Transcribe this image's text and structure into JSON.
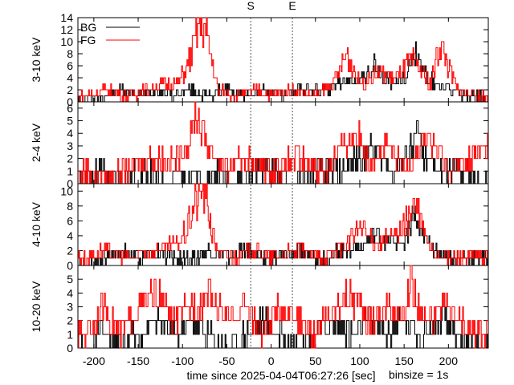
{
  "chart_data": {
    "type": "line",
    "title": "",
    "markers": [
      {
        "label": "S",
        "x": -23
      },
      {
        "label": "E",
        "x": 24
      }
    ],
    "xlabel": "time since 2025-04-04T06:27:26 [sec]",
    "binsize_label": "binsize = 1s",
    "xlim": [
      -218,
      245
    ],
    "xticks": [
      -200,
      -150,
      -100,
      -50,
      0,
      50,
      100,
      150,
      200
    ],
    "legend": {
      "placement": "top-left",
      "entries": [
        {
          "name": "BG",
          "color": "#000000"
        },
        {
          "name": "FG",
          "color": "#ff0000"
        }
      ]
    },
    "panels": [
      {
        "ylabel": "3-10 keV",
        "ylim": [
          0,
          14
        ],
        "yticks": [
          0,
          2,
          4,
          6,
          8,
          10,
          12,
          14
        ],
        "series": [
          {
            "name": "BG",
            "color": "#000000",
            "step": 1,
            "start": -210,
            "values": [
              {
                "x": -210,
                "y": 0
              },
              {
                "x": -190,
                "y": 1
              },
              {
                "x": -170,
                "y": 2
              },
              {
                "x": -150,
                "y": 1
              },
              {
                "x": -130,
                "y": 2
              },
              {
                "x": -110,
                "y": 1
              },
              {
                "x": -90,
                "y": 2
              },
              {
                "x": -70,
                "y": 1
              },
              {
                "x": -50,
                "y": 2
              },
              {
                "x": -30,
                "y": 1
              },
              {
                "x": -10,
                "y": 2
              },
              {
                "x": 10,
                "y": 1
              },
              {
                "x": 30,
                "y": 2
              },
              {
                "x": 60,
                "y": 2
              },
              {
                "x": 80,
                "y": 3
              },
              {
                "x": 105,
                "y": 4
              },
              {
                "x": 115,
                "y": 6
              },
              {
                "x": 125,
                "y": 4
              },
              {
                "x": 140,
                "y": 3
              },
              {
                "x": 155,
                "y": 5
              },
              {
                "x": 163,
                "y": 8
              },
              {
                "x": 170,
                "y": 5
              },
              {
                "x": 185,
                "y": 3
              },
              {
                "x": 200,
                "y": 2
              },
              {
                "x": 225,
                "y": 1
              },
              {
                "x": 240,
                "y": 1
              }
            ]
          },
          {
            "name": "FG",
            "color": "#ff0000",
            "step": 1,
            "start": -210,
            "values": [
              {
                "x": -210,
                "y": 1
              },
              {
                "x": -190,
                "y": 2
              },
              {
                "x": -160,
                "y": 1
              },
              {
                "x": -140,
                "y": 2
              },
              {
                "x": -120,
                "y": 3
              },
              {
                "x": -105,
                "y": 3
              },
              {
                "x": -95,
                "y": 6
              },
              {
                "x": -88,
                "y": 9
              },
              {
                "x": -84,
                "y": 12
              },
              {
                "x": -78,
                "y": 14
              },
              {
                "x": -72,
                "y": 10
              },
              {
                "x": -66,
                "y": 6
              },
              {
                "x": -60,
                "y": 2
              },
              {
                "x": -40,
                "y": 1
              },
              {
                "x": -20,
                "y": 2
              },
              {
                "x": 0,
                "y": 1
              },
              {
                "x": 20,
                "y": 2
              },
              {
                "x": 50,
                "y": 1
              },
              {
                "x": 70,
                "y": 3
              },
              {
                "x": 85,
                "y": 8
              },
              {
                "x": 100,
                "y": 3
              },
              {
                "x": 120,
                "y": 5
              },
              {
                "x": 140,
                "y": 4
              },
              {
                "x": 160,
                "y": 7
              },
              {
                "x": 180,
                "y": 3
              },
              {
                "x": 190,
                "y": 10
              },
              {
                "x": 210,
                "y": 2
              },
              {
                "x": 235,
                "y": 1
              }
            ]
          }
        ]
      },
      {
        "ylabel": "2-4 keV",
        "ylim": [
          0,
          6.5
        ],
        "yticks": [
          0,
          1,
          2,
          3,
          4,
          5,
          6
        ],
        "series": [
          {
            "name": "BG",
            "color": "#000000",
            "step": 1,
            "start": -210,
            "values": [
              {
                "x": -210,
                "y": 0
              },
              {
                "x": -195,
                "y": 1
              },
              {
                "x": -170,
                "y": 0
              },
              {
                "x": -150,
                "y": 1
              },
              {
                "x": -120,
                "y": 0
              },
              {
                "x": -100,
                "y": 1
              },
              {
                "x": -80,
                "y": 0
              },
              {
                "x": -60,
                "y": 1
              },
              {
                "x": -40,
                "y": 0
              },
              {
                "x": -20,
                "y": 1
              },
              {
                "x": 0,
                "y": 1
              },
              {
                "x": 20,
                "y": 0
              },
              {
                "x": 50,
                "y": 1
              },
              {
                "x": 80,
                "y": 1
              },
              {
                "x": 100,
                "y": 2
              },
              {
                "x": 115,
                "y": 3
              },
              {
                "x": 125,
                "y": 2
              },
              {
                "x": 140,
                "y": 1
              },
              {
                "x": 158,
                "y": 3
              },
              {
                "x": 165,
                "y": 4
              },
              {
                "x": 172,
                "y": 2
              },
              {
                "x": 190,
                "y": 1
              },
              {
                "x": 215,
                "y": 1
              },
              {
                "x": 240,
                "y": 0
              }
            ]
          },
          {
            "name": "FG",
            "color": "#ff0000",
            "step": 1,
            "start": -210,
            "values": [
              {
                "x": -210,
                "y": 1
              },
              {
                "x": -190,
                "y": 0
              },
              {
                "x": -170,
                "y": 1
              },
              {
                "x": -140,
                "y": 2
              },
              {
                "x": -110,
                "y": 2
              },
              {
                "x": -95,
                "y": 3
              },
              {
                "x": -90,
                "y": 4
              },
              {
                "x": -86,
                "y": 6
              },
              {
                "x": -82,
                "y": 5
              },
              {
                "x": -76,
                "y": 4
              },
              {
                "x": -70,
                "y": 3
              },
              {
                "x": -62,
                "y": 2
              },
              {
                "x": -50,
                "y": 1
              },
              {
                "x": -30,
                "y": 2
              },
              {
                "x": 0,
                "y": 1
              },
              {
                "x": 30,
                "y": 2
              },
              {
                "x": 60,
                "y": 1
              },
              {
                "x": 80,
                "y": 3
              },
              {
                "x": 95,
                "y": 4
              },
              {
                "x": 110,
                "y": 2
              },
              {
                "x": 130,
                "y": 3
              },
              {
                "x": 150,
                "y": 1
              },
              {
                "x": 175,
                "y": 4
              },
              {
                "x": 200,
                "y": 1
              },
              {
                "x": 225,
                "y": 2
              },
              {
                "x": 243,
                "y": 3
              }
            ]
          }
        ]
      },
      {
        "ylabel": "4-10 keV",
        "ylim": [
          0,
          11
        ],
        "yticks": [
          0,
          2,
          4,
          6,
          8,
          10
        ],
        "series": [
          {
            "name": "BG",
            "color": "#000000",
            "step": 1,
            "start": -210,
            "values": [
              {
                "x": -210,
                "y": 0
              },
              {
                "x": -190,
                "y": 1
              },
              {
                "x": -170,
                "y": 2
              },
              {
                "x": -150,
                "y": 1
              },
              {
                "x": -130,
                "y": 2
              },
              {
                "x": -110,
                "y": 1
              },
              {
                "x": -90,
                "y": 1
              },
              {
                "x": -70,
                "y": 2
              },
              {
                "x": -50,
                "y": 1
              },
              {
                "x": -30,
                "y": 2
              },
              {
                "x": -10,
                "y": 1
              },
              {
                "x": 10,
                "y": 1
              },
              {
                "x": 30,
                "y": 2
              },
              {
                "x": 60,
                "y": 1
              },
              {
                "x": 80,
                "y": 2
              },
              {
                "x": 105,
                "y": 3
              },
              {
                "x": 120,
                "y": 4
              },
              {
                "x": 135,
                "y": 3
              },
              {
                "x": 150,
                "y": 3
              },
              {
                "x": 160,
                "y": 7
              },
              {
                "x": 168,
                "y": 4
              },
              {
                "x": 185,
                "y": 2
              },
              {
                "x": 205,
                "y": 1
              },
              {
                "x": 240,
                "y": 1
              }
            ]
          },
          {
            "name": "FG",
            "color": "#ff0000",
            "step": 1,
            "start": -210,
            "values": [
              {
                "x": -210,
                "y": 1
              },
              {
                "x": -190,
                "y": 2
              },
              {
                "x": -160,
                "y": 1
              },
              {
                "x": -130,
                "y": 2
              },
              {
                "x": -105,
                "y": 3
              },
              {
                "x": -95,
                "y": 5
              },
              {
                "x": -88,
                "y": 8
              },
              {
                "x": -82,
                "y": 9
              },
              {
                "x": -78,
                "y": 11
              },
              {
                "x": -72,
                "y": 8
              },
              {
                "x": -66,
                "y": 4
              },
              {
                "x": -60,
                "y": 2
              },
              {
                "x": -40,
                "y": 1
              },
              {
                "x": -20,
                "y": 2
              },
              {
                "x": 0,
                "y": 1
              },
              {
                "x": 30,
                "y": 2
              },
              {
                "x": 60,
                "y": 1
              },
              {
                "x": 85,
                "y": 3
              },
              {
                "x": 100,
                "y": 5
              },
              {
                "x": 120,
                "y": 3
              },
              {
                "x": 140,
                "y": 4
              },
              {
                "x": 162,
                "y": 8
              },
              {
                "x": 180,
                "y": 2
              },
              {
                "x": 200,
                "y": 1
              },
              {
                "x": 225,
                "y": 1
              },
              {
                "x": 240,
                "y": 1
              }
            ]
          }
        ]
      },
      {
        "ylabel": "10-20 keV",
        "ylim": [
          0,
          6
        ],
        "yticks": [
          0,
          1,
          2,
          3,
          4,
          5
        ],
        "series": [
          {
            "name": "BG",
            "color": "#000000",
            "step": 1,
            "start": -210,
            "values": [
              {
                "x": -210,
                "y": 0
              },
              {
                "x": -190,
                "y": 1
              },
              {
                "x": -170,
                "y": 0
              },
              {
                "x": -150,
                "y": 1
              },
              {
                "x": -130,
                "y": 2
              },
              {
                "x": -110,
                "y": 1
              },
              {
                "x": -90,
                "y": 2
              },
              {
                "x": -70,
                "y": 1
              },
              {
                "x": -50,
                "y": 0
              },
              {
                "x": -30,
                "y": 1
              },
              {
                "x": -10,
                "y": 2
              },
              {
                "x": 10,
                "y": 1
              },
              {
                "x": 30,
                "y": 0
              },
              {
                "x": 50,
                "y": 1
              },
              {
                "x": 70,
                "y": 2
              },
              {
                "x": 90,
                "y": 1
              },
              {
                "x": 110,
                "y": 2
              },
              {
                "x": 130,
                "y": 1
              },
              {
                "x": 150,
                "y": 2
              },
              {
                "x": 170,
                "y": 1
              },
              {
                "x": 190,
                "y": 2
              },
              {
                "x": 210,
                "y": 1
              },
              {
                "x": 240,
                "y": 0
              }
            ]
          },
          {
            "name": "FG",
            "color": "#ff0000",
            "step": 1,
            "start": -210,
            "values": [
              {
                "x": -210,
                "y": 1
              },
              {
                "x": -190,
                "y": 3
              },
              {
                "x": -170,
                "y": 1
              },
              {
                "x": -150,
                "y": 3
              },
              {
                "x": -130,
                "y": 4
              },
              {
                "x": -110,
                "y": 2
              },
              {
                "x": -90,
                "y": 3
              },
              {
                "x": -70,
                "y": 4
              },
              {
                "x": -50,
                "y": 2
              },
              {
                "x": -30,
                "y": 3
              },
              {
                "x": -10,
                "y": 1
              },
              {
                "x": 10,
                "y": 3
              },
              {
                "x": 30,
                "y": 2
              },
              {
                "x": 50,
                "y": 1
              },
              {
                "x": 70,
                "y": 3
              },
              {
                "x": 90,
                "y": 4
              },
              {
                "x": 110,
                "y": 2
              },
              {
                "x": 130,
                "y": 3
              },
              {
                "x": 150,
                "y": 2
              },
              {
                "x": 158,
                "y": 6
              },
              {
                "x": 165,
                "y": 3
              },
              {
                "x": 180,
                "y": 2
              },
              {
                "x": 195,
                "y": 3
              },
              {
                "x": 210,
                "y": 2
              },
              {
                "x": 230,
                "y": 1
              },
              {
                "x": 243,
                "y": 1
              }
            ]
          }
        ]
      }
    ]
  }
}
